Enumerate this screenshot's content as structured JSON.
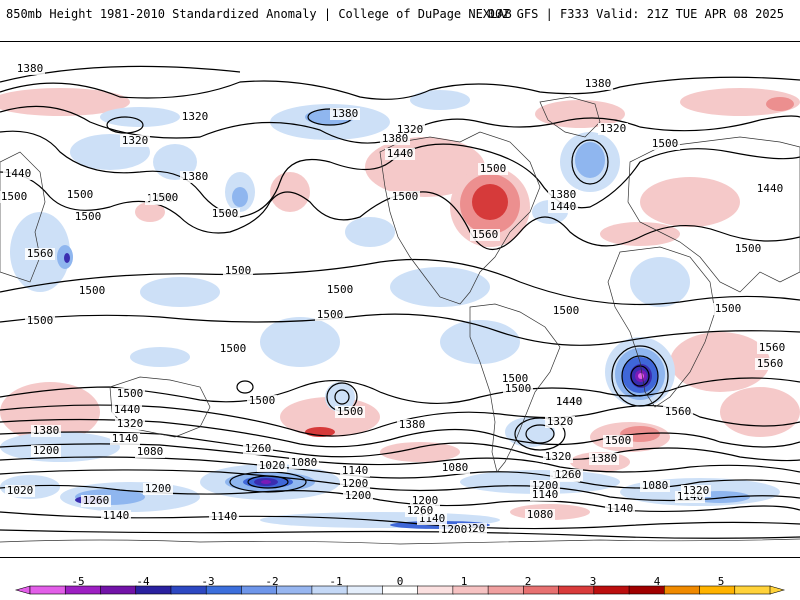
{
  "header": {
    "title_left": "850mb Height 1981-2010 Standardized Anomaly | College of DuPage NEXLAB",
    "title_right": "00Z GFS | F333 Valid: 21Z TUE APR 08 2025"
  },
  "map": {
    "field": "850mb geopotential height contours with standardized anomaly shading",
    "contour_labels": [
      "1380",
      "1320",
      "1320",
      "1380",
      "1440",
      "1500",
      "1500",
      "1440",
      "1500",
      "1380",
      "1320",
      "1380",
      "1440",
      "1500",
      "1500",
      "1560",
      "1500",
      "1380",
      "1320",
      "1380",
      "1440",
      "1500",
      "1500",
      "1440",
      "1500",
      "1500",
      "1500",
      "1500",
      "1500",
      "1500",
      "1500",
      "1500",
      "1500",
      "1500",
      "1500",
      "1560",
      "1500",
      "1440",
      "1380",
      "1320",
      "1260",
      "1200",
      "1140",
      "1080",
      "1020",
      "1020",
      "1080",
      "1140",
      "1200",
      "1260",
      "1320",
      "1380",
      "1440",
      "1500",
      "1560",
      "1500",
      "1440",
      "1380",
      "1320",
      "1260",
      "1200",
      "1140",
      "1080",
      "1140",
      "1200",
      "1140",
      "1080",
      "1140",
      "1200",
      "1260",
      "1320",
      "1080",
      "1140",
      "1200",
      "1260",
      "1320",
      "1140",
      "1200",
      "1560",
      "1500",
      "1560"
    ],
    "colors": {
      "contour": "#000000",
      "neg_1": "#cde0f7",
      "neg_2": "#8fb6ef",
      "neg_3": "#3f67d8",
      "neg_4": "#3a2db0",
      "neg_5": "#7a1bb8",
      "pos_1": "#f5c9c9",
      "pos_2": "#ec8f8f",
      "pos_3": "#d63a3a",
      "pos_4": "#b30000"
    }
  },
  "colorbar": {
    "ticks": [
      "-5",
      "-4",
      "-3",
      "-2",
      "-1",
      "0",
      "1",
      "2",
      "3",
      "4",
      "5"
    ],
    "segments": [
      {
        "value": -5.5,
        "color": "#e25ee8"
      },
      {
        "value": -5,
        "color": "#9d1fc2"
      },
      {
        "value": -4.5,
        "color": "#7213a8"
      },
      {
        "value": -4,
        "color": "#2a21a0"
      },
      {
        "value": -3.5,
        "color": "#2d48c2"
      },
      {
        "value": -3,
        "color": "#3c6fdc"
      },
      {
        "value": -2.5,
        "color": "#6e96ea"
      },
      {
        "value": -2,
        "color": "#97b6f0"
      },
      {
        "value": -1.5,
        "color": "#c4d8f6"
      },
      {
        "value": -1,
        "color": "#e4eefb"
      },
      {
        "value": 0,
        "color": "#ffffff"
      },
      {
        "value": 1,
        "color": "#fbe0e0"
      },
      {
        "value": 1.5,
        "color": "#f6c2c2"
      },
      {
        "value": 2,
        "color": "#f0a0a0"
      },
      {
        "value": 2.5,
        "color": "#e77171"
      },
      {
        "value": 3,
        "color": "#d93b3b"
      },
      {
        "value": 3.5,
        "color": "#bb0f0f"
      },
      {
        "value": 4,
        "color": "#a00000"
      },
      {
        "value": 4.5,
        "color": "#f08a00"
      },
      {
        "value": 5,
        "color": "#ffb300"
      },
      {
        "value": 5.5,
        "color": "#ffd23a"
      }
    ]
  }
}
